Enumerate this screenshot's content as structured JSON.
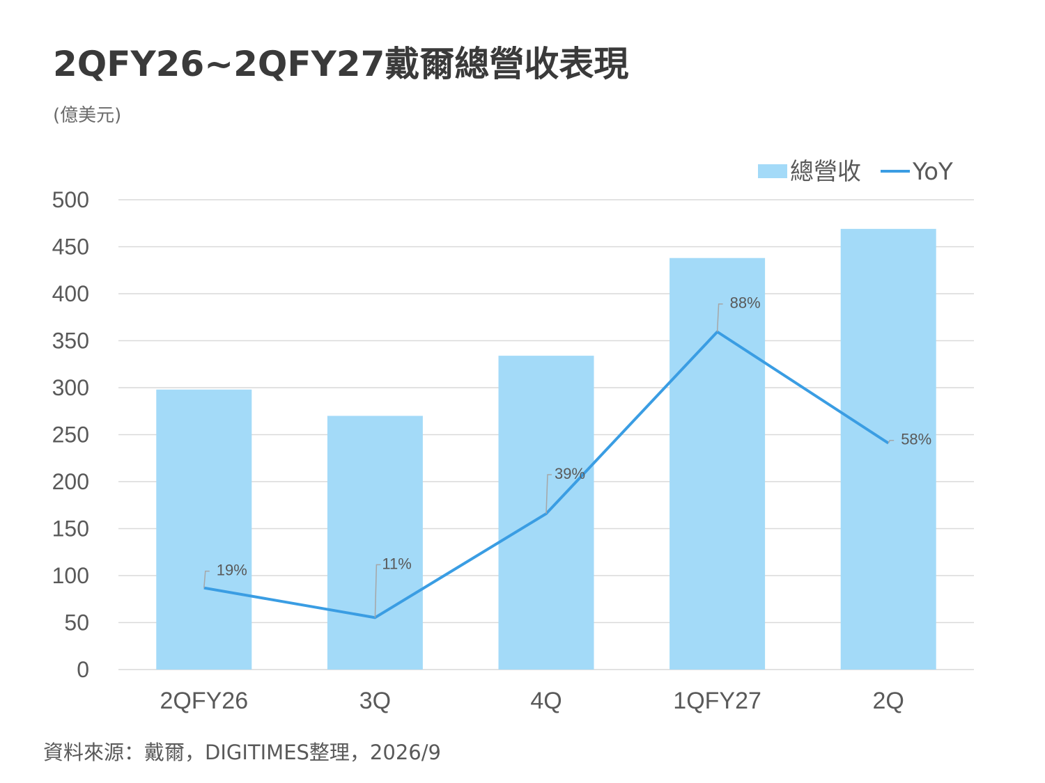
{
  "title": "2QFY26~2QFY27戴爾總營收表現",
  "unit": "(億美元)",
  "source": "資料來源：戴爾，DIGITIMES整理，2026/9",
  "colors": {
    "bar": "#a3daf8",
    "line": "#3a9de3",
    "grid": "#d9d9d9",
    "text": "#595959"
  },
  "chart_data": {
    "type": "bar",
    "categories": [
      "2QFY26",
      "3Q",
      "4Q",
      "1QFY27",
      "2Q"
    ],
    "series": [
      {
        "name": "總營收",
        "type": "bar",
        "values": [
          298,
          270,
          334,
          438,
          469
        ]
      },
      {
        "name": "YoY",
        "type": "line",
        "labels": [
          "19%",
          "11%",
          "39%",
          "88%",
          "58%"
        ],
        "values": [
          19,
          11,
          39,
          88,
          58
        ]
      }
    ],
    "y_ticks": [
      "0",
      "50",
      "100",
      "150",
      "200",
      "250",
      "300",
      "350",
      "400",
      "450",
      "500"
    ],
    "ylim": [
      0,
      500
    ],
    "legend": "top-right",
    "grid": true
  }
}
